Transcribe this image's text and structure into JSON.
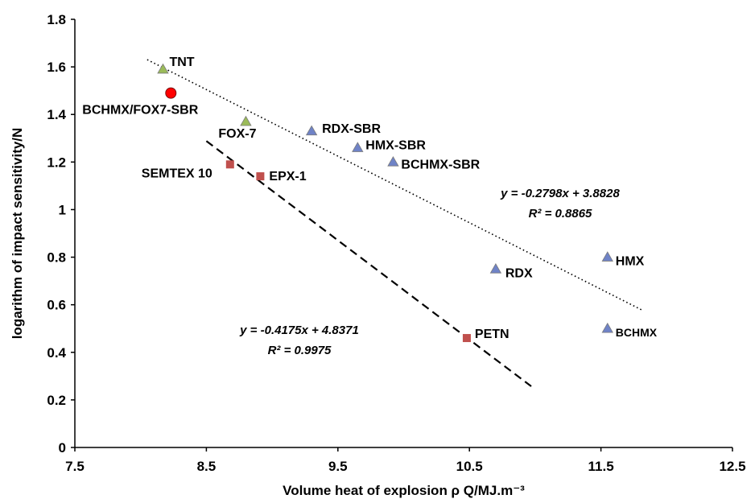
{
  "chart_data": {
    "type": "scatter",
    "xlabel": "Volume heat of explosion ρ Q/MJ.m⁻³",
    "ylabel": "logarithm of impact sensitivity/N",
    "xlim": [
      7.5,
      12.5
    ],
    "ylim": [
      0,
      1.8
    ],
    "x_ticks": [
      "7.5",
      "8.5",
      "9.5",
      "10.5",
      "11.5",
      "12.5"
    ],
    "y_ticks": [
      "0",
      "0.2",
      "0.4",
      "0.6",
      "0.8",
      "1",
      "1.2",
      "1.4",
      "1.6",
      "1.8"
    ],
    "grid": false,
    "colors": {
      "triangle_green": "#9bbb59",
      "triangle_blue": "#6f83c7",
      "square_red": "#c0504d",
      "circle_red": "#ff0000",
      "highlight_label": "#ff0000"
    },
    "points": [
      {
        "label": "TNT",
        "x": 8.17,
        "y": 1.59,
        "marker": "triangle",
        "color": "green"
      },
      {
        "label": "FOX-7",
        "x": 8.8,
        "y": 1.37,
        "marker": "triangle",
        "color": "green"
      },
      {
        "label": "BCHMX/FOX7-SBR",
        "x": 8.23,
        "y": 1.49,
        "marker": "circle",
        "color": "red",
        "highlight": true
      },
      {
        "label": "RDX-SBR",
        "x": 9.3,
        "y": 1.33,
        "marker": "triangle",
        "color": "blue"
      },
      {
        "label": "HMX-SBR",
        "x": 9.65,
        "y": 1.26,
        "marker": "triangle",
        "color": "blue"
      },
      {
        "label": "BCHMX-SBR",
        "x": 9.92,
        "y": 1.2,
        "marker": "triangle",
        "color": "blue"
      },
      {
        "label": "HMX",
        "x": 11.55,
        "y": 0.8,
        "marker": "triangle",
        "color": "blue"
      },
      {
        "label": "RDX",
        "x": 10.7,
        "y": 0.75,
        "marker": "triangle",
        "color": "blue"
      },
      {
        "label": "BCHMX",
        "x": 11.55,
        "y": 0.5,
        "marker": "triangle",
        "color": "blue"
      },
      {
        "label": "SEMTEX 10",
        "x": 8.68,
        "y": 1.19,
        "marker": "square",
        "color": "red"
      },
      {
        "label": "EPX-1",
        "x": 8.91,
        "y": 1.14,
        "marker": "square",
        "color": "red"
      },
      {
        "label": "PETN",
        "x": 10.48,
        "y": 0.46,
        "marker": "square",
        "color": "red"
      }
    ],
    "trendlines": [
      {
        "style": "dotted",
        "slope": -0.2798,
        "intercept": 3.8828,
        "x_range": [
          8.05,
          11.82
        ],
        "equation": "y = -0.2798x + 3.8828",
        "r2": "R² = 0.8865"
      },
      {
        "style": "dashed",
        "slope": -0.4175,
        "intercept": 4.8371,
        "x_range": [
          8.5,
          10.97
        ],
        "equation": "y = -0.4175x + 4.8371",
        "r2": "R² = 0.9975"
      }
    ]
  }
}
